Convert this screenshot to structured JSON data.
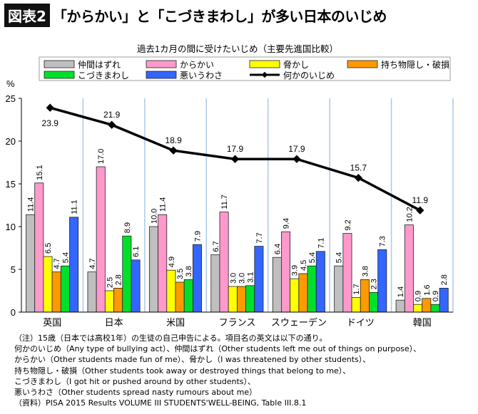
{
  "header": {
    "tag": "図表2",
    "title": "「からかい」と「こづきまわし」が多い日本のいじめ"
  },
  "chart_data": {
    "type": "bar",
    "title": "過去1カ月の間に受けたいじめ（主要先進国比較）",
    "ylabel": "%",
    "ylim": [
      0,
      25
    ],
    "yticks": [
      0,
      5,
      10,
      15,
      20,
      25
    ],
    "grid": false,
    "legend_position": "top",
    "categories": [
      "英国",
      "日本",
      "米国",
      "フランス",
      "スウェーデン",
      "ドイツ",
      "韓国"
    ],
    "series": [
      {
        "name": "仲間はずれ",
        "color": "#bfbfbf",
        "values": [
          11.4,
          4.7,
          10.0,
          6.7,
          6.4,
          5.4,
          1.4
        ],
        "labels": [
          "11.4",
          "4.7",
          "10.0",
          "6.7",
          "6.4",
          "5.4",
          "1.4"
        ]
      },
      {
        "name": "からかい",
        "color": "#ff99cc",
        "values": [
          15.1,
          17.0,
          11.4,
          11.7,
          9.4,
          9.2,
          10.2
        ],
        "labels": [
          "15.1",
          "17.0",
          "11.4",
          "11.7",
          "9.4",
          "9.2",
          "10.2"
        ]
      },
      {
        "name": "脅かし",
        "color": "#ffff00",
        "values": [
          6.5,
          2.5,
          4.9,
          3.0,
          3.9,
          1.7,
          0.9
        ],
        "labels": [
          "6.5",
          "2.5",
          "4.9",
          "3.0",
          "3.9",
          "1.7",
          "0.9"
        ]
      },
      {
        "name": "持ち物隠し・破損",
        "color": "#ff9900",
        "values": [
          4.7,
          2.8,
          3.5,
          3.0,
          4.5,
          3.8,
          1.6
        ],
        "labels": [
          "4.7",
          "2.8",
          "3.5",
          "3.0",
          "4.5",
          "3.8",
          "1.6"
        ]
      },
      {
        "name": "こづきまわし",
        "color": "#00e02a",
        "values": [
          5.4,
          8.9,
          3.8,
          3.1,
          5.4,
          2.3,
          0.9
        ],
        "labels": [
          "5.4",
          "8.9",
          "3.8",
          "3.1",
          "5.4",
          "2.3",
          "0.9"
        ]
      },
      {
        "name": "悪いうわさ",
        "color": "#3366ff",
        "values": [
          11.1,
          6.1,
          7.9,
          7.7,
          7.1,
          7.3,
          2.8
        ],
        "labels": [
          "11.1",
          "6.1",
          "7.9",
          "7.7",
          "7.1",
          "7.3",
          "2.8"
        ]
      }
    ],
    "line_series": {
      "name": "何かのいじめ",
      "type": "line",
      "color": "#000000",
      "values": [
        23.9,
        21.9,
        18.9,
        17.9,
        17.9,
        15.7,
        11.9
      ],
      "labels": [
        "23.9",
        "21.9",
        "18.9",
        "17.9",
        "17.9",
        "15.7",
        "11.9"
      ]
    }
  },
  "notes": [
    "（注）15歳（日本では高校1年）の生徒の自己申告による。項目名の英文は以下の通り。",
    "何かのいじめ（Any type of bullying act）、仲間はずれ（Other students left me out of things on purpose）、",
    "からかい（Other students made fun of me）、脅かし（I was threatened by other students）、",
    "持ち物隠し・破損（Other students took away or destroyed things that belong to me）、",
    "こづきまわし（I got hit or pushed around by other students）、",
    "悪いうわさ（Other students spread nasty rumours about me）",
    "（資料）PISA 2015 Results VOLUME III STUDENTS'WELL-BEING, Table III.8.1"
  ]
}
